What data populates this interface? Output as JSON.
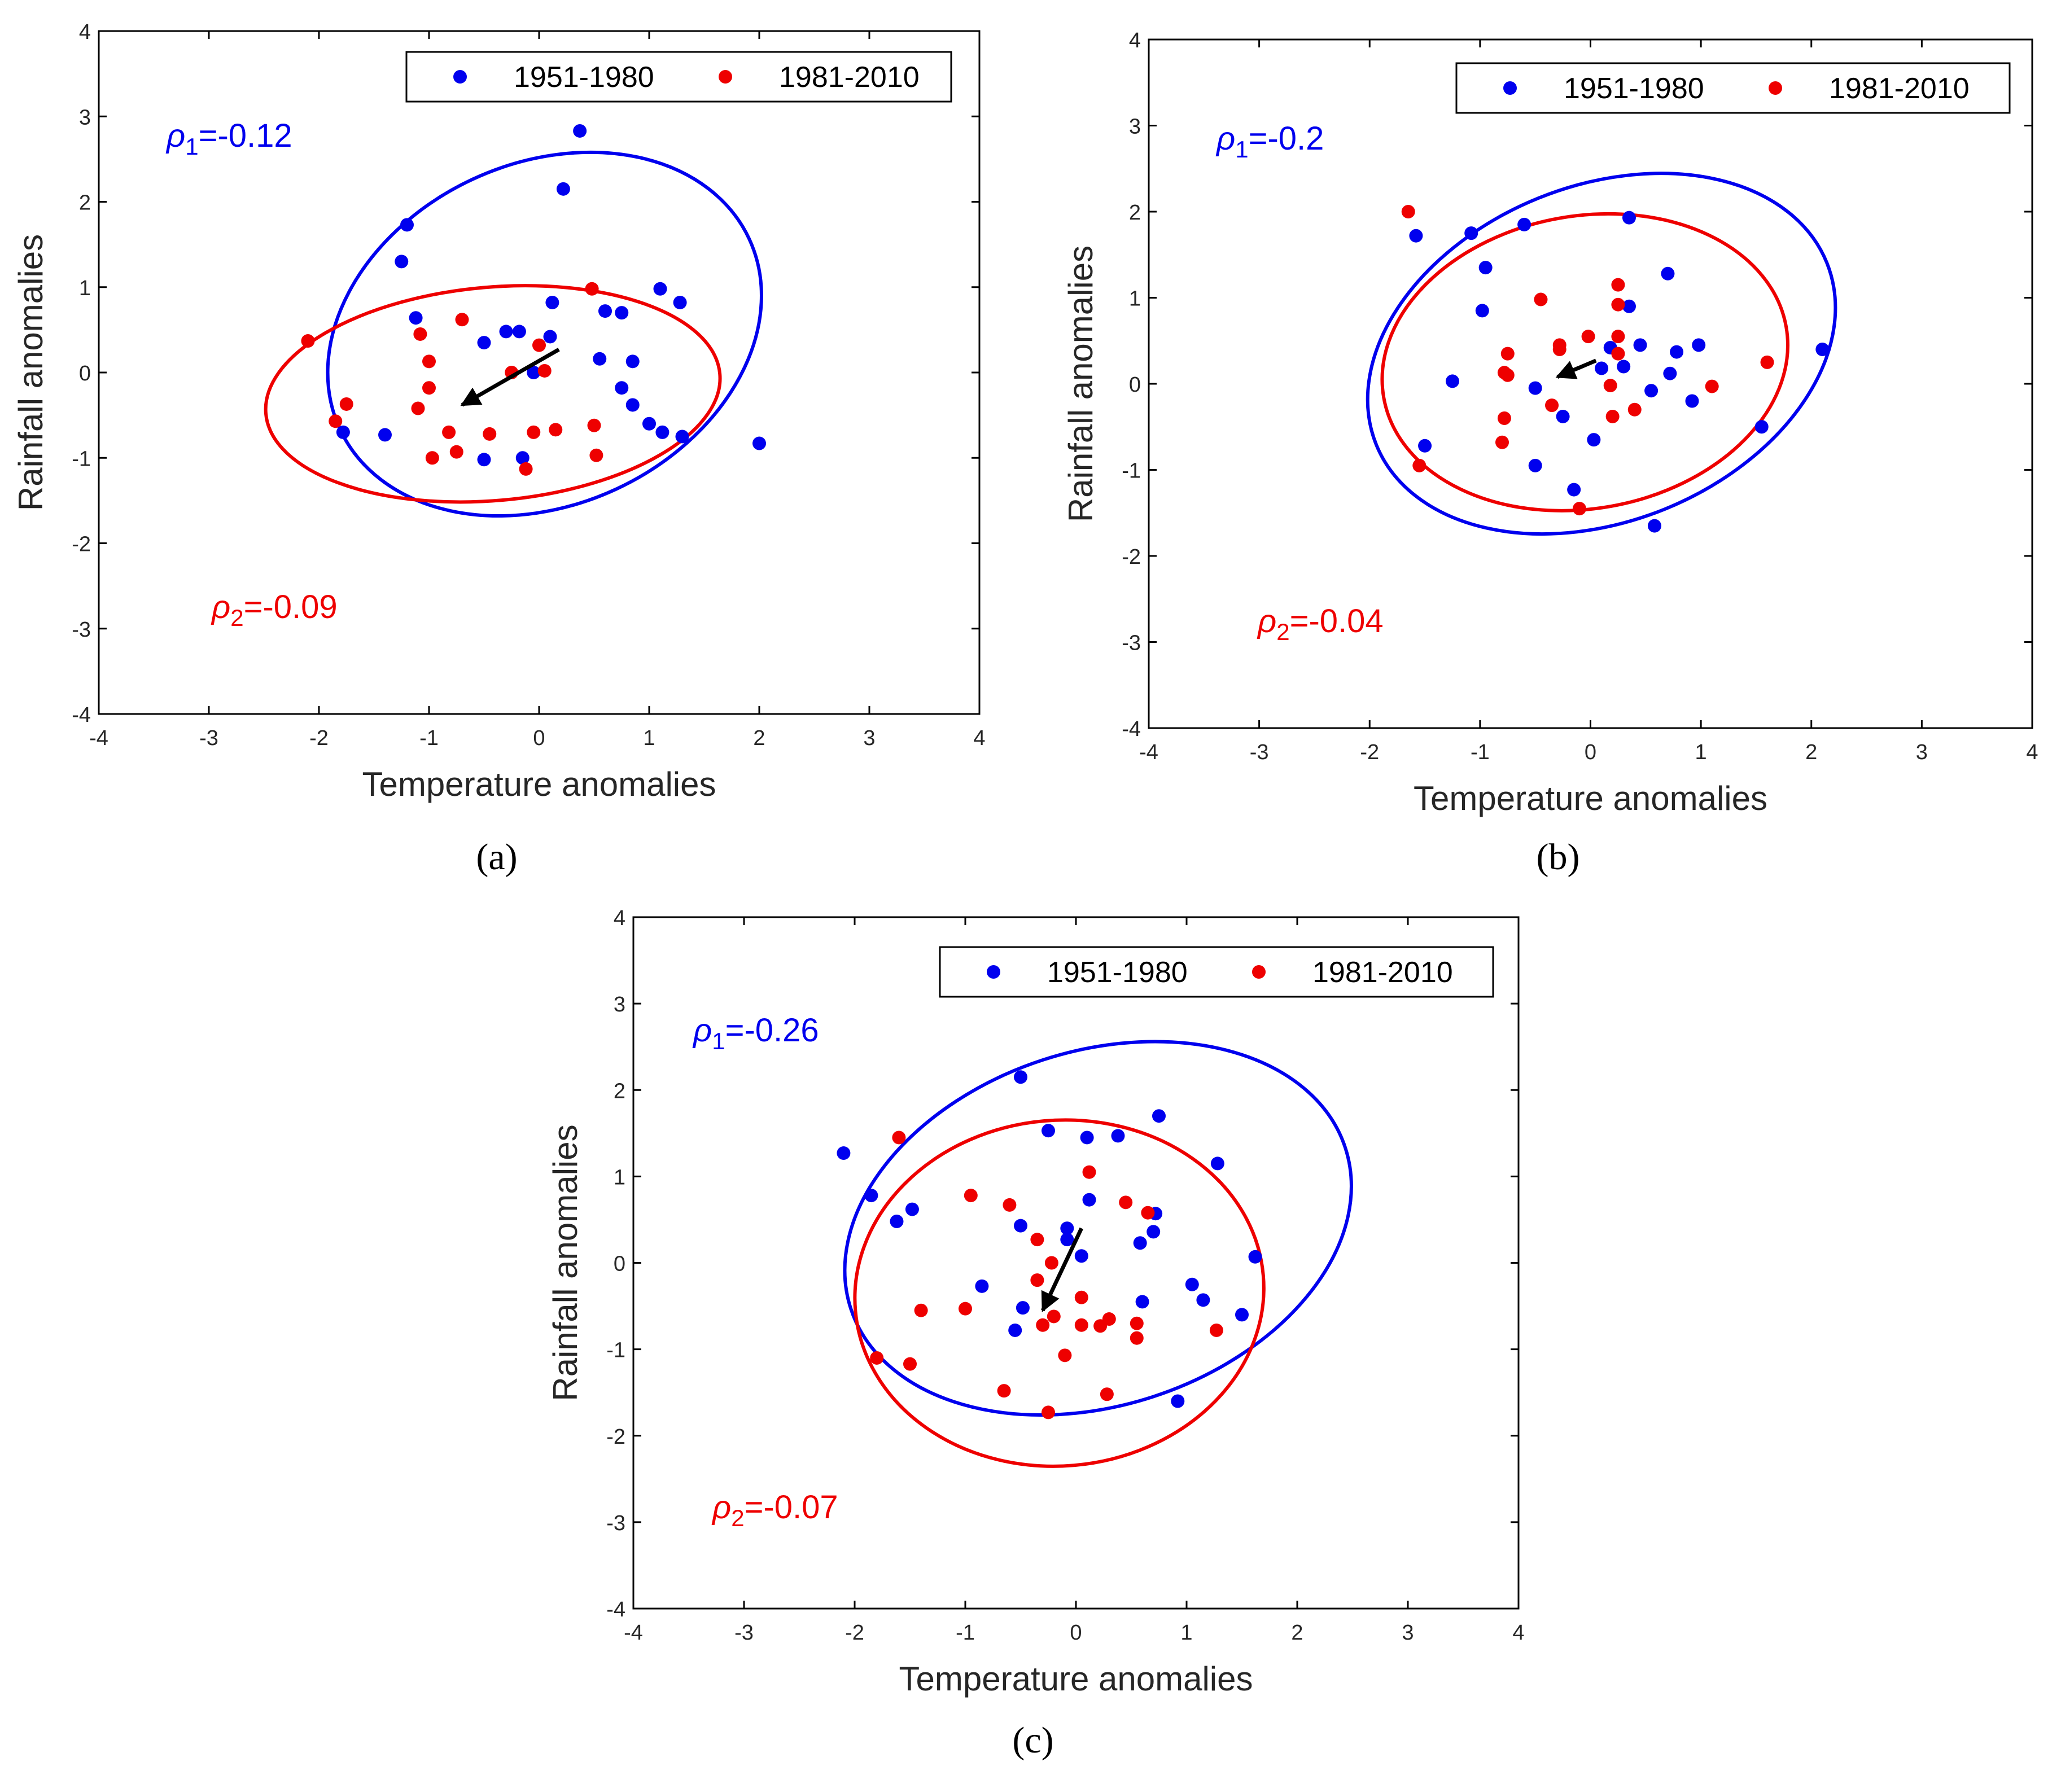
{
  "chart_data": [
    {
      "type": "scatter",
      "panel_label": "(a)",
      "xlabel": "Temperature anomalies",
      "ylabel": "Rainfall anomalies",
      "xlim": [
        -4,
        4
      ],
      "ylim": [
        -4,
        4
      ],
      "xticks": [
        -4,
        -3,
        -2,
        -1,
        0,
        1,
        2,
        3,
        4
      ],
      "yticks": [
        -4,
        -3,
        -2,
        -1,
        0,
        1,
        2,
        3,
        4
      ],
      "legend_position": "top-right",
      "rho1": {
        "symbol": "ρ",
        "sub": "1",
        "value": "=-0.12",
        "color": "#0000ee"
      },
      "rho2": {
        "symbol": "ρ",
        "sub": "2",
        "value": "=-0.09",
        "color": "#ee0000"
      },
      "series": [
        {
          "name": "1951-1980",
          "color": "#0000ee",
          "ellipse": {
            "center": [
              0.05,
              0.45
            ],
            "rx": 2.05,
            "ry": 2.0,
            "angle": -25
          },
          "points": [
            [
              0.37,
              2.83
            ],
            [
              0.22,
              2.15
            ],
            [
              -1.2,
              1.73
            ],
            [
              -1.25,
              1.3
            ],
            [
              -1.12,
              0.64
            ],
            [
              -0.3,
              0.48
            ],
            [
              -0.18,
              0.48
            ],
            [
              -0.5,
              0.35
            ],
            [
              0.12,
              0.82
            ],
            [
              0.1,
              0.42
            ],
            [
              0.6,
              0.72
            ],
            [
              0.75,
              0.7
            ],
            [
              1.1,
              0.98
            ],
            [
              1.28,
              0.82
            ],
            [
              0.55,
              0.16
            ],
            [
              0.85,
              0.13
            ],
            [
              -0.05,
              0.0
            ],
            [
              0.75,
              -0.18
            ],
            [
              0.85,
              -0.38
            ],
            [
              1.0,
              -0.6
            ],
            [
              1.12,
              -0.7
            ],
            [
              1.3,
              -0.75
            ],
            [
              2.0,
              -0.83
            ],
            [
              -1.4,
              -0.73
            ],
            [
              -1.78,
              -0.7
            ],
            [
              -0.5,
              -1.02
            ],
            [
              -0.15,
              -1.0
            ]
          ]
        },
        {
          "name": "1981-2010",
          "color": "#ee0000",
          "ellipse": {
            "center": [
              -0.42,
              -0.25
            ],
            "rx": 2.07,
            "ry": 1.25,
            "angle": -5
          },
          "points": [
            [
              -2.1,
              0.37
            ],
            [
              -1.75,
              -0.37
            ],
            [
              -1.85,
              -0.57
            ],
            [
              -1.08,
              0.45
            ],
            [
              -1.0,
              0.13
            ],
            [
              -1.0,
              -0.18
            ],
            [
              -1.1,
              -0.42
            ],
            [
              -0.7,
              0.62
            ],
            [
              -0.25,
              0.0
            ],
            [
              0.0,
              0.32
            ],
            [
              0.05,
              0.02
            ],
            [
              0.48,
              0.98
            ],
            [
              -0.82,
              -0.7
            ],
            [
              -0.45,
              -0.72
            ],
            [
              -0.05,
              -0.7
            ],
            [
              0.15,
              -0.67
            ],
            [
              0.5,
              -0.62
            ],
            [
              -0.97,
              -1.0
            ],
            [
              -0.75,
              -0.93
            ],
            [
              -0.12,
              -1.13
            ],
            [
              0.52,
              -0.97
            ]
          ]
        }
      ],
      "arrow": {
        "from": [
          0.18,
          0.27
        ],
        "to": [
          -0.7,
          -0.38
        ]
      }
    },
    {
      "type": "scatter",
      "panel_label": "(b)",
      "xlabel": "Temperature anomalies",
      "ylabel": "Rainfall anomalies",
      "xlim": [
        -4,
        4
      ],
      "ylim": [
        -4,
        4
      ],
      "xticks": [
        -4,
        -3,
        -2,
        -1,
        0,
        1,
        2,
        3,
        4
      ],
      "yticks": [
        -4,
        -3,
        -2,
        -1,
        0,
        1,
        2,
        3,
        4
      ],
      "legend_position": "top-right",
      "rho1": {
        "symbol": "ρ",
        "sub": "1",
        "value": "=-0.2",
        "color": "#0000ee"
      },
      "rho2": {
        "symbol": "ρ",
        "sub": "2",
        "value": "=-0.04",
        "color": "#ee0000"
      },
      "series": [
        {
          "name": "1951-1980",
          "color": "#0000ee",
          "ellipse": {
            "center": [
              0.1,
              0.35
            ],
            "rx": 2.2,
            "ry": 1.95,
            "angle": -22
          },
          "points": [
            [
              -1.58,
              1.72
            ],
            [
              -1.08,
              1.75
            ],
            [
              -0.6,
              1.85
            ],
            [
              0.35,
              1.93
            ],
            [
              -0.95,
              1.35
            ],
            [
              -0.98,
              0.85
            ],
            [
              0.35,
              0.9
            ],
            [
              0.7,
              1.28
            ],
            [
              -1.25,
              0.03
            ],
            [
              -0.5,
              -0.05
            ],
            [
              0.1,
              0.18
            ],
            [
              0.18,
              0.42
            ],
            [
              0.3,
              0.2
            ],
            [
              0.45,
              0.45
            ],
            [
              0.55,
              -0.08
            ],
            [
              0.72,
              0.12
            ],
            [
              0.78,
              0.37
            ],
            [
              0.92,
              -0.2
            ],
            [
              0.98,
              0.45
            ],
            [
              2.1,
              0.4
            ],
            [
              1.55,
              -0.5
            ],
            [
              -1.5,
              -0.72
            ],
            [
              -0.25,
              -0.38
            ],
            [
              0.03,
              -0.65
            ],
            [
              -0.5,
              -0.95
            ],
            [
              -0.15,
              -1.23
            ],
            [
              0.58,
              -1.65
            ]
          ]
        },
        {
          "name": "1981-2010",
          "color": "#ee0000",
          "ellipse": {
            "center": [
              -0.05,
              0.25
            ],
            "rx": 1.85,
            "ry": 1.7,
            "angle": -10
          },
          "points": [
            [
              -1.65,
              2.0
            ],
            [
              -0.45,
              0.98
            ],
            [
              -0.75,
              0.35
            ],
            [
              -0.78,
              0.13
            ],
            [
              -0.75,
              0.1
            ],
            [
              -0.28,
              0.45
            ],
            [
              -0.28,
              0.4
            ],
            [
              -0.02,
              0.55
            ],
            [
              0.25,
              1.15
            ],
            [
              0.25,
              0.92
            ],
            [
              0.25,
              0.55
            ],
            [
              0.25,
              0.35
            ],
            [
              0.18,
              -0.02
            ],
            [
              -0.35,
              -0.25
            ],
            [
              0.2,
              -0.38
            ],
            [
              0.4,
              -0.3
            ],
            [
              -0.78,
              -0.4
            ],
            [
              -0.8,
              -0.68
            ],
            [
              1.1,
              -0.03
            ],
            [
              1.6,
              0.25
            ],
            [
              -1.55,
              -0.95
            ],
            [
              -0.1,
              -1.45
            ]
          ]
        }
      ],
      "arrow": {
        "from": [
          0.05,
          0.27
        ],
        "to": [
          -0.3,
          0.08
        ]
      }
    },
    {
      "type": "scatter",
      "panel_label": "(c)",
      "xlabel": "Temperature anomalies",
      "ylabel": "Rainfall anomalies",
      "xlim": [
        -4,
        4
      ],
      "ylim": [
        -4,
        4
      ],
      "xticks": [
        -4,
        -3,
        -2,
        -1,
        0,
        1,
        2,
        3,
        4
      ],
      "yticks": [
        -4,
        -3,
        -2,
        -1,
        0,
        1,
        2,
        3,
        4
      ],
      "legend_position": "top-right",
      "rho1": {
        "symbol": "ρ",
        "sub": "1",
        "value": "=-0.26",
        "color": "#0000ee"
      },
      "rho2": {
        "symbol": "ρ",
        "sub": "2",
        "value": "=-0.07",
        "color": "#ee0000"
      },
      "series": [
        {
          "name": "1951-1980",
          "color": "#0000ee",
          "ellipse": {
            "center": [
              0.2,
              0.4
            ],
            "rx": 2.35,
            "ry": 2.05,
            "angle": -18
          },
          "points": [
            [
              -0.5,
              2.15
            ],
            [
              0.75,
              1.7
            ],
            [
              -2.1,
              1.27
            ],
            [
              -0.25,
              1.53
            ],
            [
              0.1,
              1.45
            ],
            [
              0.38,
              1.47
            ],
            [
              1.28,
              1.15
            ],
            [
              -1.85,
              0.78
            ],
            [
              -1.48,
              0.62
            ],
            [
              -1.62,
              0.48
            ],
            [
              0.12,
              0.73
            ],
            [
              0.72,
              0.57
            ],
            [
              0.7,
              0.36
            ],
            [
              -0.5,
              0.43
            ],
            [
              -0.08,
              0.4
            ],
            [
              -0.08,
              0.27
            ],
            [
              0.58,
              0.23
            ],
            [
              0.05,
              0.08
            ],
            [
              1.62,
              0.07
            ],
            [
              -0.85,
              -0.27
            ],
            [
              1.05,
              -0.25
            ],
            [
              1.15,
              -0.43
            ],
            [
              0.6,
              -0.45
            ],
            [
              -0.48,
              -0.52
            ],
            [
              1.5,
              -0.6
            ],
            [
              -0.55,
              -0.78
            ],
            [
              0.92,
              -1.6
            ]
          ]
        },
        {
          "name": "1981-2010",
          "color": "#ee0000",
          "ellipse": {
            "center": [
              -0.15,
              -0.35
            ],
            "rx": 1.85,
            "ry": 2.0,
            "angle": -5
          },
          "points": [
            [
              -1.6,
              1.45
            ],
            [
              0.12,
              1.05
            ],
            [
              -0.95,
              0.78
            ],
            [
              -0.6,
              0.67
            ],
            [
              0.45,
              0.7
            ],
            [
              0.65,
              0.58
            ],
            [
              -0.35,
              0.27
            ],
            [
              -0.22,
              0.0
            ],
            [
              -0.35,
              -0.2
            ],
            [
              0.05,
              -0.4
            ],
            [
              -1.4,
              -0.55
            ],
            [
              -1.0,
              -0.53
            ],
            [
              -0.3,
              -0.72
            ],
            [
              -0.2,
              -0.62
            ],
            [
              0.05,
              -0.72
            ],
            [
              0.22,
              -0.73
            ],
            [
              0.3,
              -0.65
            ],
            [
              0.55,
              -0.7
            ],
            [
              0.55,
              -0.87
            ],
            [
              1.27,
              -0.78
            ],
            [
              -1.8,
              -1.1
            ],
            [
              -1.5,
              -1.17
            ],
            [
              -0.1,
              -1.07
            ],
            [
              -0.65,
              -1.48
            ],
            [
              0.28,
              -1.52
            ],
            [
              -0.25,
              -1.73
            ]
          ]
        }
      ],
      "arrow": {
        "from": [
          0.05,
          0.4
        ],
        "to": [
          -0.3,
          -0.55
        ]
      }
    }
  ]
}
